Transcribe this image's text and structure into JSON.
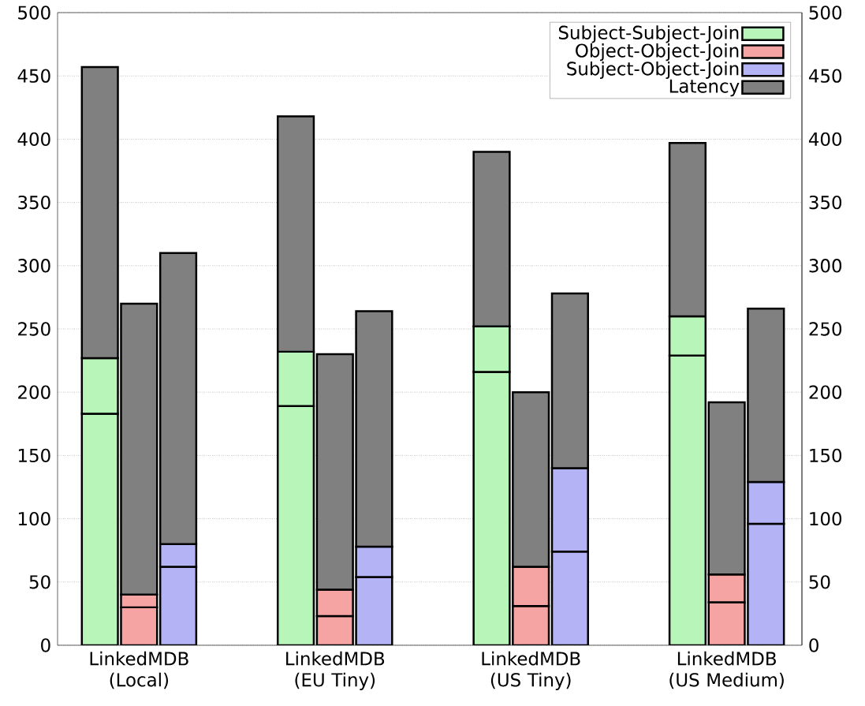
{
  "chart_data": {
    "type": "bar",
    "stacked": true,
    "categories": [
      null,
      "LinkedMDB (Local)",
      null,
      null,
      null,
      null,
      "LinkedMDB (EU Tiny)",
      null,
      null,
      null,
      null,
      "LinkedMDB (US Tiny)",
      null,
      null,
      null,
      null,
      "LinkedMDB (US Medium)",
      null
    ],
    "series": [
      {
        "name": "Subject-Subject-Join",
        "color": "#b8f5b8",
        "values": [
          183,
          null,
          null,
          null,
          null,
          189,
          null,
          null,
          null,
          null,
          216,
          null,
          null,
          null,
          null,
          229,
          null,
          null
        ]
      },
      {
        "color": "#b8f5b8",
        "values": [
          44,
          null,
          null,
          null,
          null,
          43,
          null,
          null,
          null,
          null,
          36,
          null,
          null,
          null,
          null,
          31,
          null,
          null
        ]
      },
      {
        "name": "Object-Object-Join",
        "color": "#f5a3a3",
        "values": [
          null,
          30,
          null,
          null,
          null,
          null,
          23,
          null,
          null,
          null,
          null,
          31,
          null,
          null,
          null,
          null,
          34,
          null
        ]
      },
      {
        "color": "#f5a3a3",
        "values": [
          null,
          10,
          null,
          null,
          null,
          null,
          21,
          null,
          null,
          null,
          null,
          31,
          null,
          null,
          null,
          null,
          22,
          null
        ]
      },
      {
        "name": "Subject-Object-Join",
        "color": "#b3b3f5",
        "values": [
          null,
          null,
          62,
          null,
          null,
          null,
          null,
          54,
          null,
          null,
          null,
          null,
          74,
          null,
          null,
          null,
          null,
          96
        ]
      },
      {
        "color": "#b3b3f5",
        "values": [
          null,
          null,
          18,
          null,
          null,
          null,
          null,
          24,
          null,
          null,
          null,
          null,
          66,
          null,
          null,
          null,
          null,
          33
        ]
      },
      {
        "name": "Latency",
        "color": "#808080",
        "values": [
          230,
          230,
          230,
          null,
          null,
          186,
          186,
          186,
          null,
          null,
          138,
          138,
          138,
          null,
          null,
          137,
          136,
          137
        ]
      }
    ],
    "ylim": [
      0,
      500
    ],
    "yticks": [
      0,
      50,
      100,
      150,
      200,
      250,
      300,
      350,
      400,
      450,
      500
    ],
    "y2lim": [
      0,
      500
    ],
    "y2ticks": [
      0,
      50,
      100,
      150,
      200,
      250,
      300,
      350,
      400,
      450,
      500
    ],
    "grid": "y",
    "legend": "top right"
  }
}
